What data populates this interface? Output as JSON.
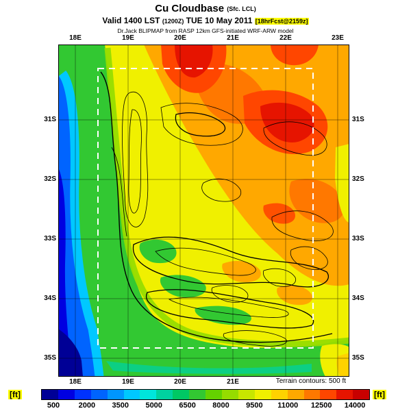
{
  "header": {
    "title": "Cu Cloudbase",
    "title_suffix": "(Sfc. LCL)",
    "valid_prefix": "Valid 1400 LST",
    "valid_zulu": "(1200Z)",
    "valid_date": "TUE 10 May 2011",
    "fcst_badge": "[18hrFcst@2159z]",
    "model_note": "Dr.Jack BLIPMAP from RASP 12km GFS-initiated WRF-ARW model"
  },
  "map": {
    "top_labels": [
      "18E",
      "19E",
      "20E",
      "21E",
      "22E",
      "23E"
    ],
    "bottom_labels": [
      "18E",
      "19E",
      "20E",
      "21E"
    ],
    "left_labels": [
      "31S",
      "32S",
      "33S",
      "34S",
      "35S"
    ],
    "right_labels": [
      "31S",
      "32S",
      "33S",
      "34S",
      "35S"
    ],
    "terrain_note": "Terrain contours: 500 ft"
  },
  "colorbar": {
    "unit_left": "[ft]",
    "unit_right": "[ft]",
    "ticks": [
      "500",
      "2000",
      "3500",
      "5000",
      "6500",
      "8000",
      "9500",
      "11000",
      "12500",
      "14000"
    ],
    "colors": [
      "#000096",
      "#0000e1",
      "#0032ff",
      "#0064ff",
      "#0096ff",
      "#00c8ff",
      "#00e6dc",
      "#00d2a0",
      "#00c864",
      "#32c832",
      "#64d200",
      "#96dc00",
      "#c8e600",
      "#f0f000",
      "#ffd200",
      "#ffa800",
      "#ff7800",
      "#ff4600",
      "#e61400",
      "#c80000"
    ],
    "highlight": "#ffff00"
  },
  "chart_data": {
    "type": "heatmap",
    "title": "Cu Cloudbase (Sfc. LCL)",
    "units": "ft",
    "valid": "Valid 1400 LST (1200Z) TUE 10 May 2011",
    "forecast": "18hrFcst@2159z",
    "model": "Dr.Jack BLIPMAP from RASP 12km GFS-initiated WRF-ARW model",
    "x_ticks": [
      "18E",
      "19E",
      "20E",
      "21E",
      "22E",
      "23E"
    ],
    "y_ticks": [
      "31S",
      "32S",
      "33S",
      "34S",
      "35S"
    ],
    "scale_ft": [
      500,
      2000,
      3500,
      5000,
      6500,
      8000,
      9500,
      11000,
      12500,
      14000
    ],
    "terrain_contour_interval_ft": 500,
    "field_summary": "Low cloudbase (blue, 500-2000 ft) over the western ocean strip; cyan-green 3500-6500 ft along the west coast and southern ocean; green-yellow 6500-9500 ft over southwest land; yellow-orange 9500-11000 ft over the central interior; orange-red maxima 12500-14000 ft top-center and northeast interior"
  }
}
